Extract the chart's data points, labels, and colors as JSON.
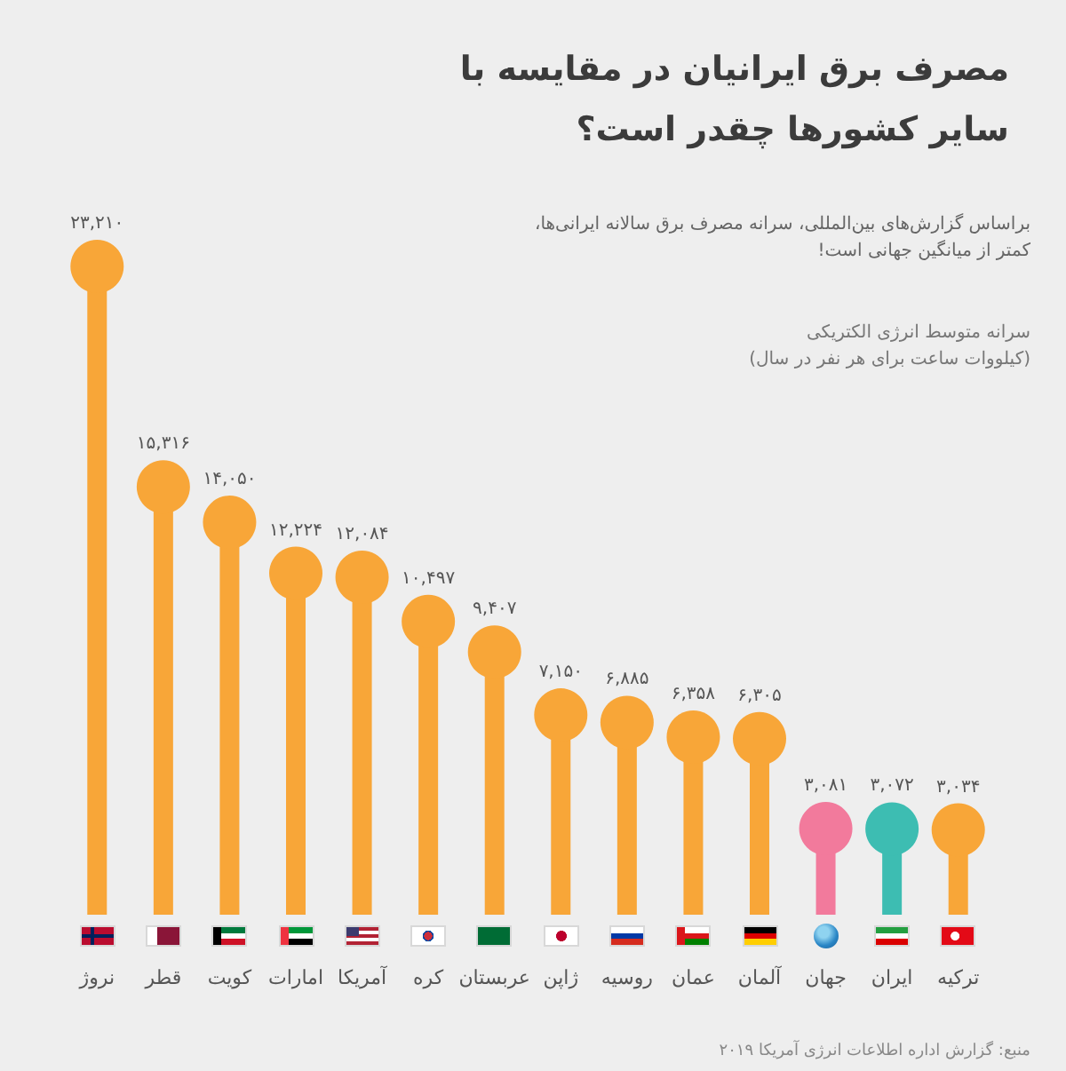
{
  "chart_data": {
    "type": "lollipop",
    "title": "مصرف برق ایرانیان در مقایسه با سایر کشورها چقدر است؟",
    "subtitle": "براساس گزارش‌های بین‌المللی، سرانه مصرف برق سالانه ایرانی‌ها، کمتر از میانگین جهانی است!",
    "ylabel": "سرانه متوسط انرژی الکتریکی (کیلووات ساعت برای هر نفر در سال)",
    "annotations": [
      "منبع: گزارش اداره اطلاعات انرژی آمریکا ۲۰۱۹"
    ],
    "categories": [
      "نروژ",
      "قطر",
      "کویت",
      "امارات",
      "آمریکا",
      "کره",
      "عربستان",
      "ژاپن",
      "روسیه",
      "عمان",
      "آلمان",
      "جهان",
      "ایران",
      "ترکیه"
    ],
    "values": [
      23210,
      15316,
      14050,
      12224,
      12084,
      10497,
      9407,
      7150,
      6885,
      6358,
      6305,
      3081,
      3072,
      3034
    ],
    "value_labels": [
      "۲۳,۲۱۰",
      "۱۵,۳۱۶",
      "۱۴,۰۵۰",
      "۱۲,۲۲۴",
      "۱۲,۰۸۴",
      "۱۰,۴۹۷",
      "۹,۴۰۷",
      "۷,۱۵۰",
      "۶,۸۸۵",
      "۶,۳۵۸",
      "۶,۳۰۵",
      "۳,۰۸۱",
      "۳,۰۷۲",
      "۳,۰۳۴"
    ],
    "colors": [
      "#f8a638",
      "#f8a638",
      "#f8a638",
      "#f8a638",
      "#f8a638",
      "#f8a638",
      "#f8a638",
      "#f8a638",
      "#f8a638",
      "#f8a638",
      "#f8a638",
      "#f27a9c",
      "#3dbdb2",
      "#f8a638"
    ],
    "marker": "circle"
  }
}
